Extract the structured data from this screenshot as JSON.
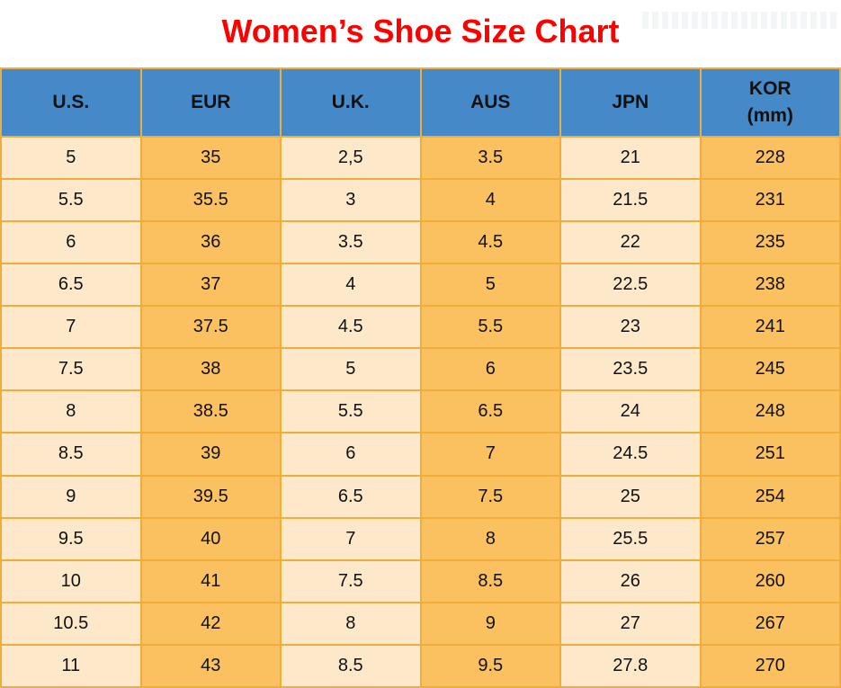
{
  "title": "Women’s Shoe Size Chart",
  "colors": {
    "title_color": "#fe0000",
    "header_bg": "#4589c8",
    "row_light": "#fde9ca",
    "row_orange": "#fbc161",
    "border_color": "#efae3c",
    "text_color": "#111111"
  },
  "chart_data": {
    "type": "table",
    "title": "Women’s Shoe Size Chart",
    "columns": [
      "U.S.",
      "EUR",
      "U.K.",
      "AUS",
      "JPN",
      "KOR\n(mm)"
    ],
    "rows": [
      [
        "5",
        "35",
        "2,5",
        "3.5",
        "21",
        "228"
      ],
      [
        "5.5",
        "35.5",
        "3",
        "4",
        "21.5",
        "231"
      ],
      [
        "6",
        "36",
        "3.5",
        "4.5",
        "22",
        "235"
      ],
      [
        "6.5",
        "37",
        "4",
        "5",
        "22.5",
        "238"
      ],
      [
        "7",
        "37.5",
        "4.5",
        "5.5",
        "23",
        "241"
      ],
      [
        "7.5",
        "38",
        "5",
        "6",
        "23.5",
        "245"
      ],
      [
        "8",
        "38.5",
        "5.5",
        "6.5",
        "24",
        "248"
      ],
      [
        "8.5",
        "39",
        "6",
        "7",
        "24.5",
        "251"
      ],
      [
        "9",
        "39.5",
        "6.5",
        "7.5",
        "25",
        "254"
      ],
      [
        "9.5",
        "40",
        "7",
        "8",
        "25.5",
        "257"
      ],
      [
        "10",
        "41",
        "7.5",
        "8.5",
        "26",
        "260"
      ],
      [
        "10.5",
        "42",
        "8",
        "9",
        "27",
        "267"
      ],
      [
        "11",
        "43",
        "8.5",
        "9.5",
        "27.8",
        "270"
      ]
    ]
  }
}
